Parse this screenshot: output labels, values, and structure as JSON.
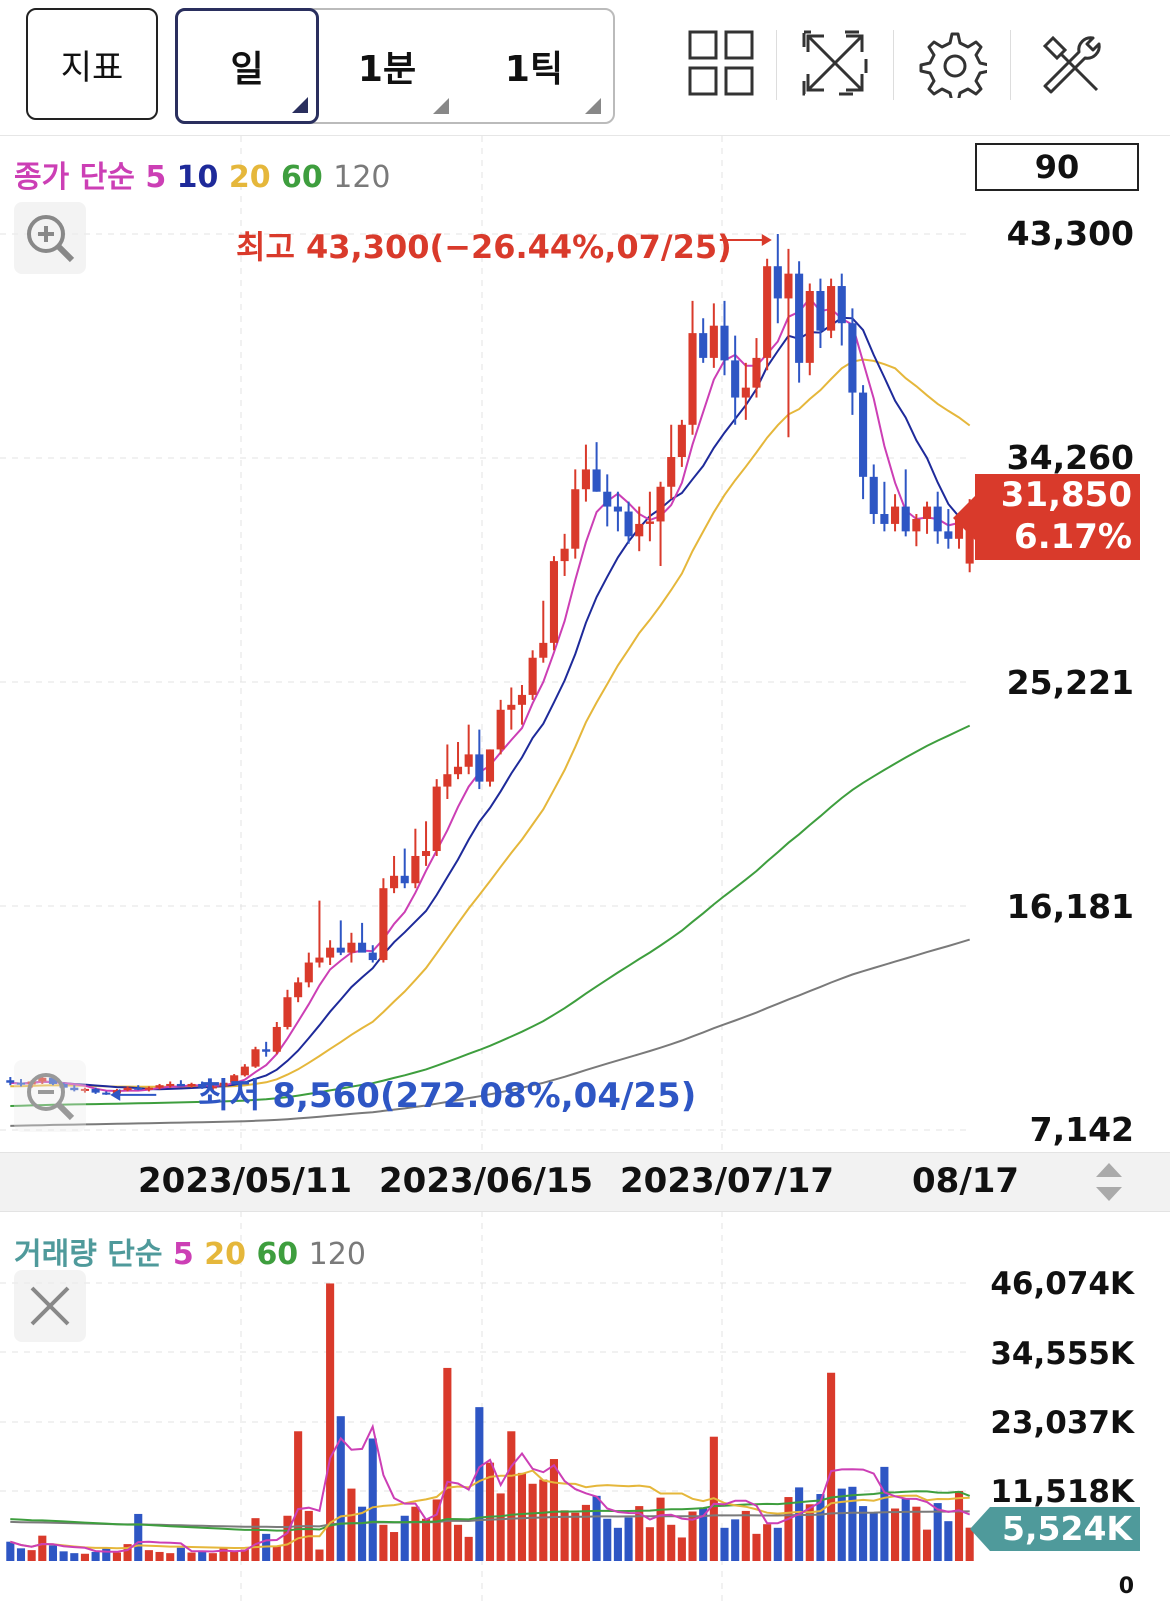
{
  "toolbar": {
    "indicator_label": "지표",
    "segments": [
      {
        "label": "일",
        "active": true
      },
      {
        "label": "1분",
        "active": false
      },
      {
        "label": "1틱",
        "active": false
      }
    ],
    "icons": [
      "grid-layout-icon",
      "fullscreen-icon",
      "gear-icon",
      "tools-icon"
    ]
  },
  "price_panel": {
    "legend": {
      "prefix": "종가 단순",
      "periods": [
        "5",
        "10",
        "20",
        "60",
        "120"
      ]
    },
    "period_input": "90",
    "y_labels": [
      "43,300",
      "34,260",
      "25,221",
      "16,181",
      "7,142"
    ],
    "high_annotation": "최고 43,300(−26.44%,07/25)",
    "low_annotation": "최저 8,560(272.08%,04/25)",
    "current_price": "31,850",
    "current_change": "6.17%"
  },
  "x_axis": {
    "labels": [
      "2023/05/11",
      "2023/06/15",
      "2023/07/17",
      "08/17"
    ]
  },
  "volume_panel": {
    "legend": {
      "prefix": "거래량 단순",
      "periods": [
        "5",
        "20",
        "60",
        "120"
      ]
    },
    "y_labels": [
      "46,074K",
      "34,555K",
      "23,037K",
      "11,518K",
      "0"
    ],
    "current_volume": "5,524K"
  },
  "colors": {
    "up": "#d93a2b",
    "down": "#2e56c4",
    "ma5": "#cc3fb5",
    "ma10": "#1e2a9a",
    "ma20": "#e5b73b",
    "ma60": "#3e9e3e",
    "ma120": "#7a7a7a",
    "vol_legend": "#4f9a9b"
  },
  "chart_data": [
    {
      "type": "candlestick",
      "title": "",
      "y_range": [
        7142,
        43300
      ],
      "ohlc": [
        [
          9150,
          9280,
          8950,
          9050
        ],
        [
          9050,
          9200,
          8900,
          8980
        ],
        [
          8980,
          9150,
          8850,
          9100
        ],
        [
          9100,
          9300,
          9000,
          9250
        ],
        [
          9250,
          9300,
          8950,
          9000
        ],
        [
          9000,
          9050,
          8800,
          8850
        ],
        [
          8850,
          8950,
          8700,
          8750
        ],
        [
          8750,
          8850,
          8650,
          8800
        ],
        [
          8800,
          8850,
          8600,
          8650
        ],
        [
          8650,
          8700,
          8560,
          8620
        ],
        [
          8620,
          8800,
          8580,
          8750
        ],
        [
          8750,
          8900,
          8700,
          8850
        ],
        [
          8850,
          8950,
          8750,
          8800
        ],
        [
          8800,
          8900,
          8700,
          8850
        ],
        [
          8850,
          9000,
          8780,
          8950
        ],
        [
          8950,
          9100,
          8850,
          9000
        ],
        [
          9000,
          9150,
          8900,
          8900
        ],
        [
          8900,
          9050,
          8850,
          9000
        ],
        [
          9000,
          9100,
          8800,
          8850
        ],
        [
          8850,
          8950,
          8750,
          8900
        ],
        [
          8900,
          9100,
          8850,
          9050
        ],
        [
          9050,
          9400,
          9000,
          9350
        ],
        [
          9350,
          9800,
          9300,
          9700
        ],
        [
          9700,
          10500,
          9650,
          10400
        ],
        [
          10400,
          10700,
          10100,
          10300
        ],
        [
          10300,
          11500,
          10200,
          11300
        ],
        [
          11300,
          12800,
          11200,
          12500
        ],
        [
          12500,
          13300,
          12300,
          13100
        ],
        [
          13100,
          14300,
          12900,
          13900
        ],
        [
          13900,
          16400,
          13700,
          14100
        ],
        [
          14100,
          14800,
          13800,
          14500
        ],
        [
          14500,
          15600,
          14200,
          14300
        ],
        [
          14300,
          15100,
          13900,
          14700
        ],
        [
          14700,
          15500,
          14400,
          14300
        ],
        [
          14300,
          14600,
          13900,
          14000
        ],
        [
          14000,
          17300,
          13900,
          16900
        ],
        [
          16900,
          18200,
          16700,
          17400
        ],
        [
          17400,
          18500,
          16900,
          17100
        ],
        [
          17100,
          19300,
          16900,
          18200
        ],
        [
          18200,
          19600,
          17800,
          18400
        ],
        [
          18400,
          21300,
          18200,
          21000
        ],
        [
          21000,
          22700,
          20500,
          21500
        ],
        [
          21500,
          22800,
          21300,
          21800
        ],
        [
          21800,
          23500,
          21500,
          22300
        ],
        [
          22300,
          23300,
          20900,
          21200
        ],
        [
          21200,
          22500,
          21000,
          22500
        ],
        [
          22500,
          24500,
          22300,
          24100
        ],
        [
          24100,
          25000,
          23300,
          24300
        ],
        [
          24300,
          25100,
          23500,
          24700
        ],
        [
          24700,
          26500,
          24500,
          26200
        ],
        [
          26200,
          28500,
          26000,
          26800
        ],
        [
          26800,
          30300,
          26500,
          30100
        ],
        [
          30100,
          31200,
          29500,
          30600
        ],
        [
          30600,
          33800,
          30200,
          33000
        ],
        [
          33000,
          34800,
          32500,
          33800
        ],
        [
          33800,
          34900,
          32900,
          32900
        ],
        [
          32900,
          33600,
          31500,
          32300
        ],
        [
          32300,
          32900,
          31300,
          32100
        ],
        [
          32100,
          32500,
          30800,
          31100
        ],
        [
          31100,
          32300,
          30500,
          31600
        ],
        [
          31600,
          32900,
          30900,
          31700
        ],
        [
          31700,
          33300,
          29900,
          33100
        ],
        [
          33100,
          35600,
          32600,
          34300
        ],
        [
          34300,
          35800,
          33900,
          35600
        ],
        [
          35600,
          40600,
          35200,
          39300
        ],
        [
          39300,
          39900,
          38100,
          38300
        ],
        [
          38300,
          40500,
          37900,
          39600
        ],
        [
          39600,
          40600,
          37600,
          38200
        ],
        [
          38200,
          39200,
          35600,
          36700
        ],
        [
          36700,
          38100,
          35800,
          37100
        ],
        [
          37100,
          39100,
          36700,
          38300
        ],
        [
          38300,
          42300,
          37800,
          42000
        ],
        [
          42000,
          43300,
          39700,
          40700
        ],
        [
          40700,
          42700,
          35100,
          41700
        ],
        [
          41700,
          42200,
          37300,
          38100
        ],
        [
          38100,
          41300,
          37600,
          41000
        ],
        [
          41000,
          41500,
          38700,
          39400
        ],
        [
          39400,
          41500,
          39100,
          41200
        ],
        [
          41200,
          41700,
          38800,
          39700
        ],
        [
          39700,
          40300,
          36000,
          36900
        ],
        [
          36900,
          37200,
          32600,
          33500
        ],
        [
          33500,
          34000,
          31600,
          32000
        ],
        [
          32000,
          33300,
          31300,
          31600
        ],
        [
          31600,
          32800,
          31300,
          32300
        ],
        [
          32300,
          33800,
          31100,
          31300
        ],
        [
          31300,
          32000,
          30700,
          31800
        ],
        [
          31800,
          32500,
          31200,
          32300
        ],
        [
          32300,
          32900,
          30800,
          31300
        ],
        [
          31300,
          32200,
          30600,
          31000
        ],
        [
          31000,
          32000,
          30600,
          31800
        ],
        [
          30000,
          32600,
          29650,
          31850
        ]
      ]
    },
    {
      "type": "bar",
      "title": "",
      "y_range": [
        0,
        46074
      ],
      "unit": "K",
      "values": [
        3200,
        2100,
        1800,
        4200,
        2600,
        1600,
        1300,
        1200,
        1500,
        2200,
        1400,
        2800,
        7800,
        1800,
        1500,
        1300,
        2200,
        1400,
        1700,
        1300,
        2100,
        1500,
        1900,
        7100,
        4500,
        2400,
        7500,
        21500,
        8300,
        1900,
        46000,
        24000,
        12000,
        9000,
        20300,
        6000,
        4800,
        7500,
        9000,
        7000,
        10200,
        32000,
        6000,
        4000,
        25500,
        16300,
        11200,
        21500,
        14600,
        12800,
        13500,
        16900,
        8400,
        8000,
        9300,
        10800,
        7000,
        5500,
        7200,
        9100,
        5600,
        10500,
        6000,
        3900,
        8200,
        8700,
        20600,
        5500,
        6900,
        8300,
        4500,
        6100,
        5500,
        10600,
        12200,
        9400,
        11100,
        31200,
        12000,
        12300,
        9100,
        7900,
        15600,
        8700,
        10300,
        9000,
        5200,
        9600,
        6600,
        11600,
        5524
      ]
    }
  ]
}
